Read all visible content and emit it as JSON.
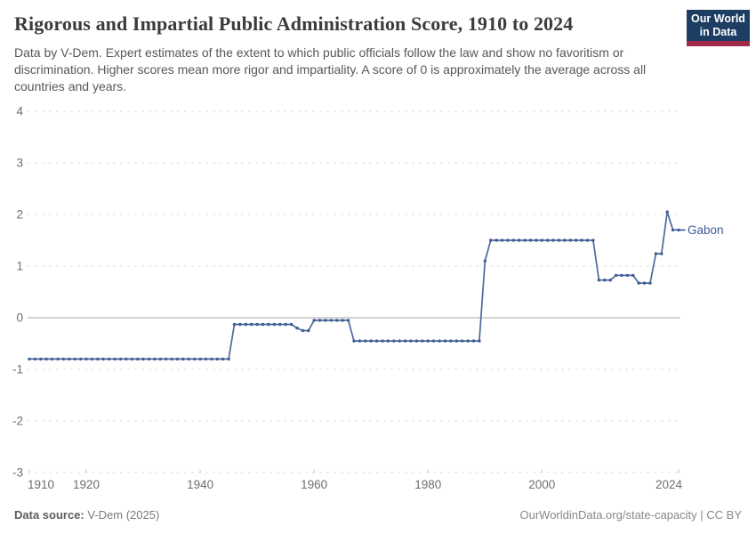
{
  "header": {
    "title": "Rigorous and Impartial Public Administration Score, 1910 to 2024",
    "subtitle": "Data by V-Dem. Expert estimates of the extent to which public officials follow the law and show no favoritism or discrimination. Higher scores mean more rigor and impartiality. A score of 0 is approximately the average across all countries and years.",
    "logo": {
      "line1": "Our World",
      "line2": "in Data",
      "bg_color": "#1d3d63",
      "stripe_color": "#a32b4a"
    }
  },
  "footer": {
    "source_label": "Data source:",
    "source_value": " V-Dem (2025)",
    "attribution": "OurWorldinData.org/state-capacity | CC BY"
  },
  "chart_data": {
    "type": "line",
    "title": "Rigorous and Impartial Public Administration Score, 1910 to 2024",
    "entity_label": "Gabon",
    "line_color": "#4c6a9c",
    "marker_color": "#3d5c94",
    "grid": "dashed horizontal gridlines, solid zero line",
    "legend_position": "end-of-line label",
    "ylim": [
      -3,
      4
    ],
    "yticks": [
      4,
      3,
      2,
      1,
      0,
      -1,
      -2,
      -3
    ],
    "xticks": [
      1910,
      1920,
      1940,
      1960,
      1980,
      2000,
      2024
    ],
    "x_range": [
      1910,
      2024
    ],
    "series": [
      {
        "name": "Gabon",
        "start_year": 1910,
        "end_year": 2024,
        "values": [
          -0.8,
          -0.8,
          -0.8,
          -0.8,
          -0.8,
          -0.8,
          -0.8,
          -0.8,
          -0.8,
          -0.8,
          -0.8,
          -0.8,
          -0.8,
          -0.8,
          -0.8,
          -0.8,
          -0.8,
          -0.8,
          -0.8,
          -0.8,
          -0.8,
          -0.8,
          -0.8,
          -0.8,
          -0.8,
          -0.8,
          -0.8,
          -0.8,
          -0.8,
          -0.8,
          -0.8,
          -0.8,
          -0.8,
          -0.8,
          -0.8,
          -0.8,
          -0.13,
          -0.13,
          -0.13,
          -0.13,
          -0.13,
          -0.13,
          -0.13,
          -0.13,
          -0.13,
          -0.13,
          -0.13,
          -0.2,
          -0.25,
          -0.25,
          -0.05,
          -0.05,
          -0.05,
          -0.05,
          -0.05,
          -0.05,
          -0.05,
          -0.45,
          -0.45,
          -0.45,
          -0.45,
          -0.45,
          -0.45,
          -0.45,
          -0.45,
          -0.45,
          -0.45,
          -0.45,
          -0.45,
          -0.45,
          -0.45,
          -0.45,
          -0.45,
          -0.45,
          -0.45,
          -0.45,
          -0.45,
          -0.45,
          -0.45,
          -0.45,
          1.1,
          1.5,
          1.5,
          1.5,
          1.5,
          1.5,
          1.5,
          1.5,
          1.5,
          1.5,
          1.5,
          1.5,
          1.5,
          1.5,
          1.5,
          1.5,
          1.5,
          1.5,
          1.5,
          1.5,
          0.73,
          0.73,
          0.73,
          0.82,
          0.82,
          0.82,
          0.82,
          0.67,
          0.67,
          0.67,
          1.24,
          1.24,
          2.05,
          1.7,
          1.7
        ]
      }
    ]
  }
}
